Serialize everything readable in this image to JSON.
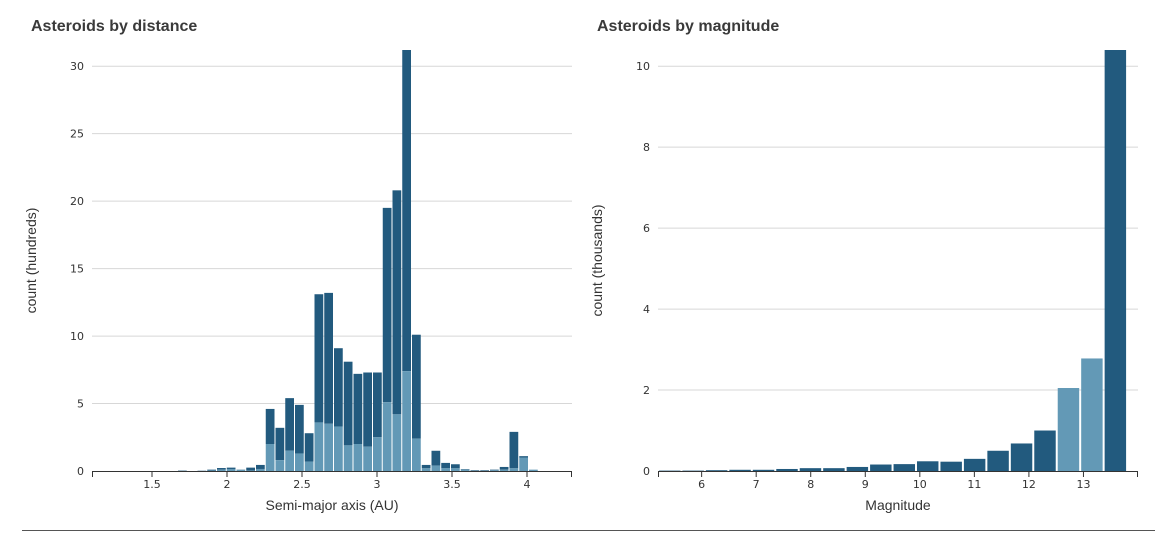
{
  "colors": {
    "dark": "#225a7e",
    "light": "#6399b6",
    "grid": "#d7d7d7",
    "axis": "#333333"
  },
  "chart_data": [
    {
      "type": "bar",
      "stacked": true,
      "title": "Asteroids by distance",
      "xlabel": "Semi-major axis (AU)",
      "ylabel": "count (hundreds)",
      "xlim": [
        1.1,
        4.3
      ],
      "ylim": [
        0,
        31.2
      ],
      "xticks": [
        1.5,
        2,
        2.5,
        3,
        3.5,
        4
      ],
      "yticks": [
        0,
        5,
        10,
        15,
        20,
        25,
        30
      ],
      "bin_width": 0.065,
      "bin_starts": [
        1.67,
        1.735,
        1.8,
        1.865,
        1.93,
        1.995,
        2.06,
        2.125,
        2.19,
        2.255,
        2.32,
        2.385,
        2.45,
        2.515,
        2.58,
        2.645,
        2.71,
        2.775,
        2.84,
        2.905,
        2.97,
        3.035,
        3.1,
        3.165,
        3.23,
        3.295,
        3.36,
        3.425,
        3.49,
        3.555,
        3.62,
        3.685,
        3.75,
        3.815,
        3.88,
        3.945,
        4.01,
        4.075
      ],
      "series": [
        {
          "values": [
            0,
            0,
            0,
            0.03,
            0.1,
            0.15,
            0.08,
            0.03,
            0.15,
            2.0,
            0.8,
            1.5,
            1.3,
            0.7,
            3.6,
            3.5,
            3.3,
            1.9,
            2.0,
            1.8,
            2.5,
            5.1,
            4.2,
            7.4,
            2.4,
            0.2,
            0.4,
            0.2,
            0.2,
            0.1,
            0,
            0,
            0.05,
            0.1,
            0.2,
            1.0,
            0.1,
            0
          ]
        },
        {
          "values": [
            0.03,
            0,
            0.02,
            0.07,
            0.12,
            0.1,
            0.02,
            0.22,
            0.3,
            2.6,
            2.4,
            3.9,
            3.6,
            2.1,
            9.5,
            9.7,
            5.8,
            6.2,
            5.2,
            5.5,
            4.8,
            14.4,
            16.6,
            23.8,
            7.7,
            0.25,
            1.1,
            0.4,
            0.3,
            0.04,
            0.05,
            0.05,
            0.05,
            0.2,
            2.7,
            0.1,
            0,
            0
          ]
        }
      ]
    },
    {
      "type": "bar",
      "title": "Asteroids by magnitude",
      "xlabel": "Magnitude",
      "ylabel": "count (thousands)",
      "xlim": [
        5.2,
        14.0
      ],
      "ylim": [
        0,
        10.4
      ],
      "xticks": [
        6,
        7,
        8,
        9,
        10,
        11,
        12,
        13
      ],
      "yticks": [
        0,
        2,
        4,
        6,
        8,
        10
      ],
      "bin_width": 0.43,
      "bin_starts": [
        5.2,
        5.63,
        6.06,
        6.49,
        6.92,
        7.35,
        7.78,
        8.21,
        8.64,
        9.07,
        9.5,
        9.93,
        10.36,
        10.79,
        11.22,
        11.65,
        12.08,
        12.51,
        12.94,
        13.37,
        13.8
      ],
      "values": [
        0.01,
        0.01,
        0.02,
        0.03,
        0.03,
        0.05,
        0.07,
        0.07,
        0.1,
        0.16,
        0.17,
        0.24,
        0.23,
        0.3,
        0.5,
        0.68,
        1.0,
        2.05,
        2.78,
        11.0,
        0
      ],
      "highlight": [
        false,
        false,
        false,
        false,
        false,
        false,
        false,
        false,
        false,
        false,
        false,
        false,
        false,
        false,
        false,
        false,
        false,
        true,
        true,
        false,
        false
      ]
    }
  ]
}
